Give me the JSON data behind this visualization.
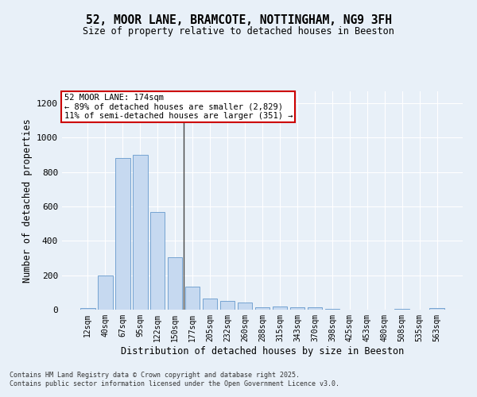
{
  "title_line1": "52, MOOR LANE, BRAMCOTE, NOTTINGHAM, NG9 3FH",
  "title_line2": "Size of property relative to detached houses in Beeston",
  "xlabel": "Distribution of detached houses by size in Beeston",
  "ylabel": "Number of detached properties",
  "footer_line1": "Contains HM Land Registry data © Crown copyright and database right 2025.",
  "footer_line2": "Contains public sector information licensed under the Open Government Licence v3.0.",
  "annotation_line1": "52 MOOR LANE: 174sqm",
  "annotation_line2": "← 89% of detached houses are smaller (2,829)",
  "annotation_line3": "11% of semi-detached houses are larger (351) →",
  "categories": [
    "12sqm",
    "40sqm",
    "67sqm",
    "95sqm",
    "122sqm",
    "150sqm",
    "177sqm",
    "205sqm",
    "232sqm",
    "260sqm",
    "288sqm",
    "315sqm",
    "343sqm",
    "370sqm",
    "398sqm",
    "425sqm",
    "453sqm",
    "480sqm",
    "508sqm",
    "535sqm",
    "563sqm"
  ],
  "values": [
    10,
    200,
    880,
    900,
    570,
    305,
    135,
    65,
    50,
    42,
    12,
    18,
    16,
    15,
    6,
    0,
    0,
    0,
    4,
    0,
    10
  ],
  "bar_color": "#c6d9f0",
  "bar_edge_color": "#6699cc",
  "background_color": "#e8f0f8",
  "grid_color": "#ffffff",
  "annotation_box_color": "#ffffff",
  "annotation_box_edge": "#cc0000",
  "vline_color": "#444444",
  "ylim": [
    0,
    1270
  ],
  "yticks": [
    0,
    200,
    400,
    600,
    800,
    1000,
    1200
  ],
  "vline_index": 5.5
}
